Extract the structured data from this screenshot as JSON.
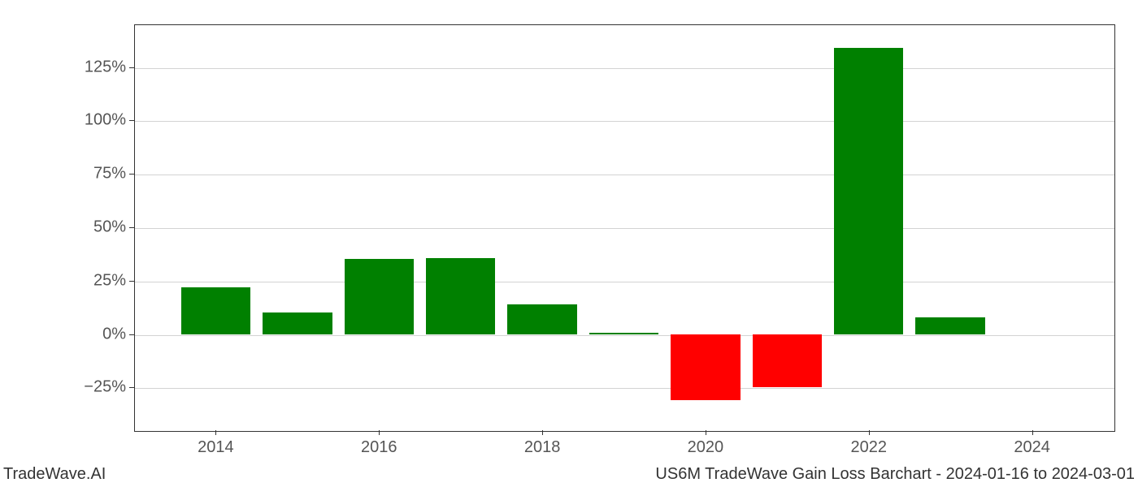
{
  "chart": {
    "type": "bar",
    "background_color": "#ffffff",
    "grid_color": "#d3d3d3",
    "border_color": "#333333",
    "positive_color": "#008000",
    "negative_color": "#ff0000",
    "tick_font_size": 20,
    "tick_color": "#555555",
    "years": [
      2014,
      2015,
      2016,
      2017,
      2018,
      2019,
      2020,
      2021,
      2022,
      2023
    ],
    "values": [
      22,
      10,
      35,
      35.5,
      14,
      0.5,
      -31,
      -25,
      134,
      8
    ],
    "bar_width": 0.85,
    "x_tick_labels": [
      "2014",
      "2016",
      "2018",
      "2020",
      "2022",
      "2024"
    ],
    "x_tick_positions": [
      2014,
      2016,
      2018,
      2020,
      2022,
      2024
    ],
    "xlim": [
      2013,
      2025
    ],
    "y_ticks": [
      -25,
      0,
      25,
      50,
      75,
      100,
      125
    ],
    "y_tick_labels": [
      "−25%",
      "0%",
      "25%",
      "50%",
      "75%",
      "100%",
      "125%"
    ],
    "ylim": [
      -45,
      145
    ]
  },
  "footer": {
    "left": "TradeWave.AI",
    "right": "US6M TradeWave Gain Loss Barchart - 2024-01-16 to 2024-03-01"
  }
}
